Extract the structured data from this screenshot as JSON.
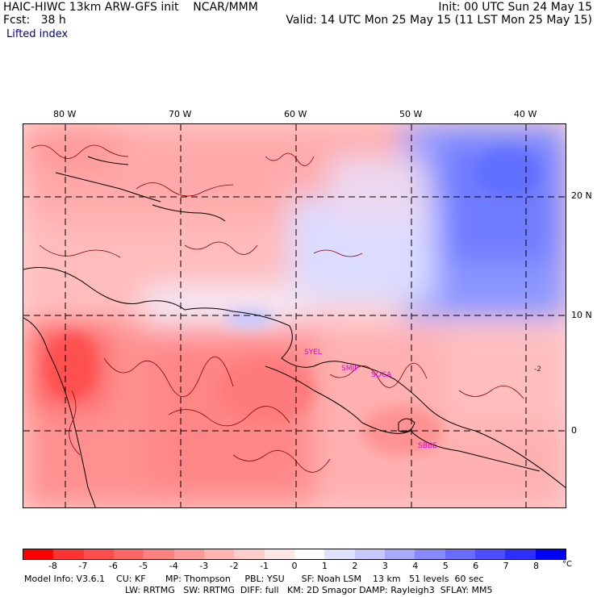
{
  "header": {
    "model_line": "HAIC-HIWC 13km ARW-GFS init    NCAR/MMM",
    "fcst_line": "Fcst:   38 h",
    "init_line": "Init: 00 UTC Sun 24 May 15",
    "valid_line": "Valid: 14 UTC Mon 25 May 15 (11 LST Mon 25 May 15)",
    "field_name": "Lifted index"
  },
  "map": {
    "lon_labels": [
      "80 W",
      "70 W",
      "60 W",
      "50 W",
      "40 W"
    ],
    "lat_labels": [
      "20 N",
      "10 N",
      "0"
    ],
    "contour_labels": [
      "-2"
    ],
    "stations": [
      "SYEL",
      "SMJP",
      "SOCA",
      "SBBE"
    ]
  },
  "colorbar": {
    "ticks": [
      "-8",
      "-7",
      "-6",
      "-5",
      "-4",
      "-3",
      "-2",
      "-1",
      "0",
      "1",
      "2",
      "3",
      "4",
      "5",
      "6",
      "7",
      "8"
    ],
    "unit": "°C",
    "colors": [
      "#ff0000",
      "#ff3333",
      "#ff4d4d",
      "#ff6666",
      "#ff8080",
      "#ff9999",
      "#ffb3b3",
      "#ffcccc",
      "#ffe6e6",
      "#ffffff",
      "#e0e0ff",
      "#c8c8ff",
      "#a8a8ff",
      "#8888ff",
      "#6a6aff",
      "#4d4dff",
      "#2e2eff",
      "#0000ff"
    ]
  },
  "footer": {
    "line1": "Model Info: V3.6.1    CU: KF       MP: Thompson     PBL: YSU      SF: Noah LSM    13 km   51 levels  60 sec",
    "line2": "LW: RRTMG   SW: RRTMG  DIFF: full   KM: 2D Smagor DAMP: Rayleigh3  SFLAY: MM5"
  }
}
